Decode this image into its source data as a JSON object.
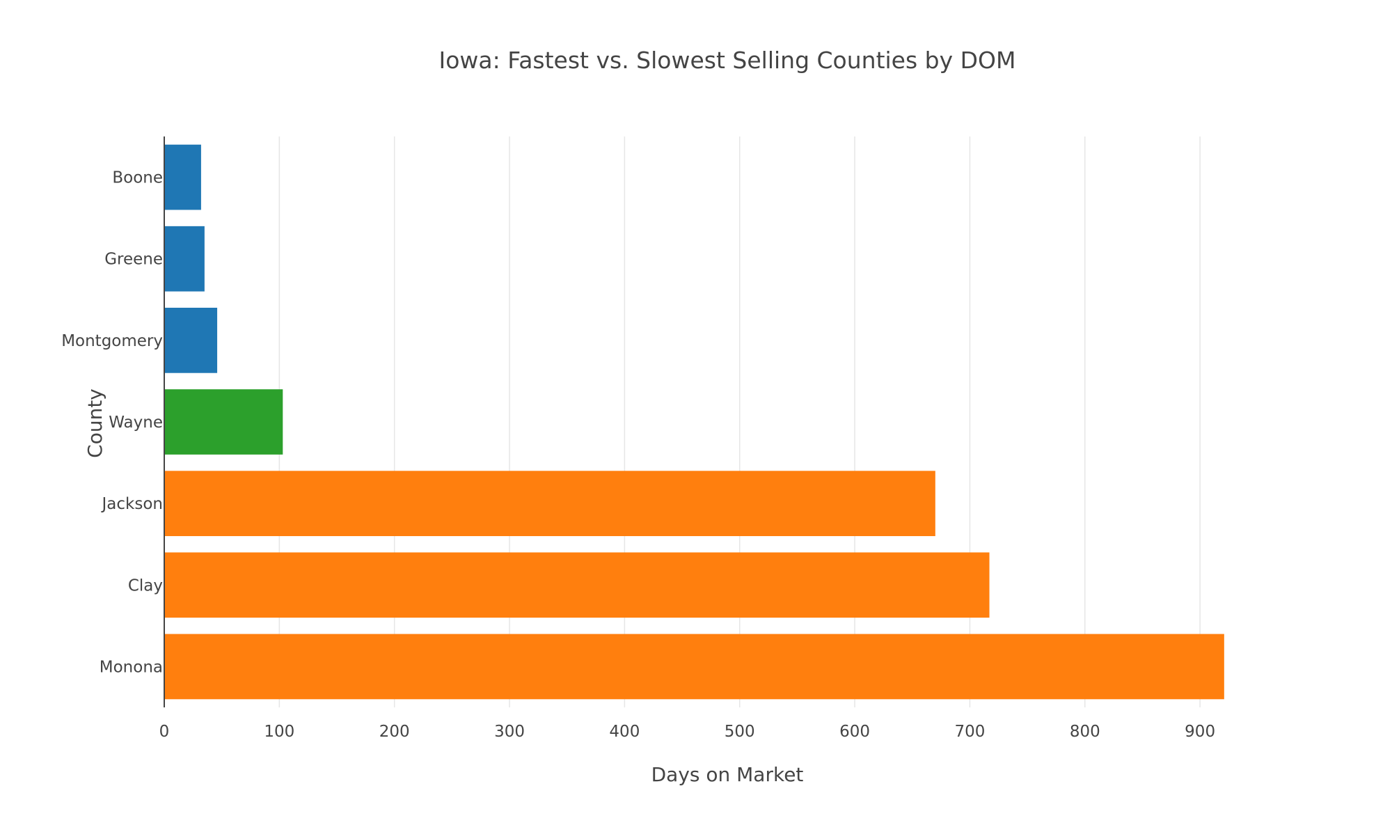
{
  "chart_data": {
    "type": "bar",
    "orientation": "horizontal",
    "title": "Iowa: Fastest vs. Slowest Selling Counties by DOM",
    "xlabel": "Days on Market",
    "ylabel": "County",
    "xlim": [
      0,
      935
    ],
    "xticks": [
      0,
      100,
      200,
      300,
      400,
      500,
      600,
      700,
      800,
      900
    ],
    "grid": true,
    "legend": "none",
    "categories": [
      "Boone",
      "Greene",
      "Montgomery",
      "Wayne",
      "Jackson",
      "Clay",
      "Monona"
    ],
    "values": [
      32,
      35,
      46,
      103,
      670,
      717,
      921
    ],
    "colors": [
      "#1f77b4",
      "#1f77b4",
      "#1f77b4",
      "#2ca02c",
      "#ff7f0e",
      "#ff7f0e",
      "#ff7f0e"
    ]
  }
}
